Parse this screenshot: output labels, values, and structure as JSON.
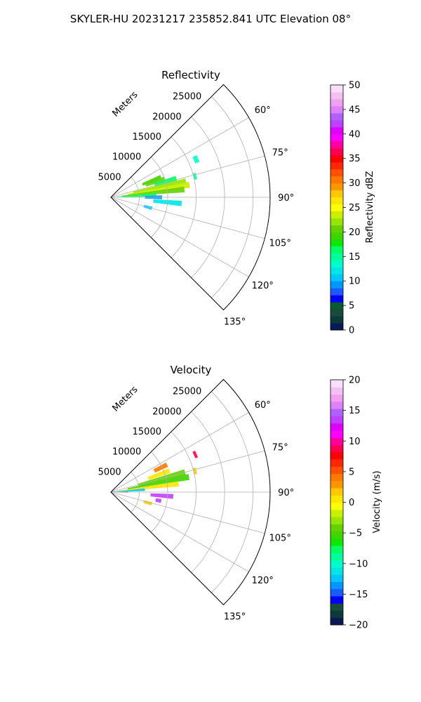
{
  "figure": {
    "suptitle": "SKYLER-HU  20231217  235852.841 UTC Elevation 08°"
  },
  "chart_data": [
    {
      "type": "polar-sector",
      "title": "Reflectivity",
      "radial_label": "Meters",
      "theta_range_deg": [
        45,
        135
      ],
      "r_max": 28000,
      "r_ticks": [
        5000,
        10000,
        15000,
        20000,
        25000
      ],
      "r_tick_labels": [
        "5000",
        "10000",
        "15000",
        "20000",
        "25000"
      ],
      "theta_ticks": [
        60,
        75,
        90,
        105,
        120,
        135
      ],
      "theta_tick_labels": [
        "60°",
        "75°",
        "90°",
        "105°",
        "120°",
        "135°"
      ],
      "grid": true,
      "colorbar": {
        "label": "Reflectivity dBZ",
        "min": 0,
        "max": 50,
        "ticks": [
          0,
          5,
          10,
          15,
          20,
          25,
          30,
          35,
          40,
          45,
          50
        ],
        "tick_labels": [
          "0",
          "5",
          "10",
          "15",
          "20",
          "25",
          "30",
          "35",
          "40",
          "45",
          "50"
        ],
        "bands": [
          "#0a1a55",
          "#0a3a3a",
          "#1a4a3a",
          "#0a5a30",
          "#0000ff",
          "#1a5aff",
          "#0096ff",
          "#00c8ff",
          "#00e6e6",
          "#00ffc8",
          "#00ff96",
          "#00ff64",
          "#10e600",
          "#40d400",
          "#64d200",
          "#96e600",
          "#c8f000",
          "#ffff00",
          "#ffe600",
          "#ffc800",
          "#ff9600",
          "#ff7800",
          "#ff5000",
          "#ff2800",
          "#ff0000",
          "#ff0050",
          "#ff00a0",
          "#ff00ff",
          "#e000ff",
          "#c040ff",
          "#b060ff",
          "#e080ff",
          "#f0a0f0",
          "#f4c0f4",
          "#f8e0f8"
        ]
      },
      "echo_regions": [
        {
          "theta": 68,
          "r_range": [
            6000,
            9500
          ],
          "value": 19
        },
        {
          "theta": 71,
          "r_range": [
            6500,
            10000
          ],
          "value": 21
        },
        {
          "theta": 74,
          "r_range": [
            8000,
            12000
          ],
          "value": 17
        },
        {
          "theta": 78,
          "r_range": [
            4000,
            13500
          ],
          "value": 22
        },
        {
          "theta": 81,
          "r_range": [
            3000,
            14000
          ],
          "value": 24
        },
        {
          "theta": 84,
          "r_range": [
            2000,
            13000
          ],
          "value": 20
        },
        {
          "theta": 87,
          "r_range": [
            1000,
            8000
          ],
          "value": 16
        },
        {
          "theta": 90,
          "r_range": [
            6000,
            9000
          ],
          "value": 9
        },
        {
          "theta": 95,
          "r_range": [
            7500,
            12500
          ],
          "value": 12
        },
        {
          "theta": 105,
          "r_range": [
            6000,
            7500
          ],
          "value": 11
        },
        {
          "theta": 66,
          "r_range": [
            16000,
            16800
          ],
          "value": 14
        },
        {
          "theta": 76,
          "r_range": [
            15000,
            15500
          ],
          "value": 15
        }
      ]
    },
    {
      "type": "polar-sector",
      "title": "Velocity",
      "radial_label": "Meters",
      "theta_range_deg": [
        45,
        135
      ],
      "r_max": 28000,
      "r_ticks": [
        5000,
        10000,
        15000,
        20000,
        25000
      ],
      "r_tick_labels": [
        "5000",
        "10000",
        "15000",
        "20000",
        "25000"
      ],
      "theta_ticks": [
        60,
        75,
        90,
        105,
        120,
        135
      ],
      "theta_tick_labels": [
        "60°",
        "75°",
        "90°",
        "105°",
        "120°",
        "135°"
      ],
      "grid": true,
      "colorbar": {
        "label": "Velocity (m/s)",
        "min": -20,
        "max": 20,
        "ticks": [
          -20,
          -15,
          -10,
          -5,
          0,
          5,
          10,
          15,
          20
        ],
        "tick_labels": [
          "−20",
          "−15",
          "−10",
          "−5",
          "0",
          "5",
          "10",
          "15",
          "20"
        ],
        "bands": [
          "#0a1a55",
          "#0a3a3a",
          "#1a4a3a",
          "#0000ff",
          "#1a5aff",
          "#0096ff",
          "#00c8ff",
          "#00e6e6",
          "#00ffc8",
          "#00ff96",
          "#00ff64",
          "#10e600",
          "#40d400",
          "#64d200",
          "#96e600",
          "#c8f000",
          "#ffff00",
          "#ffe600",
          "#ffc800",
          "#ff9600",
          "#ff7800",
          "#ff5000",
          "#ff2800",
          "#ff0000",
          "#ff0050",
          "#ff00a0",
          "#ff00ff",
          "#e000ff",
          "#c040ff",
          "#b060ff",
          "#e080ff",
          "#f0a0f0",
          "#f4c0f4",
          "#f8e0f8"
        ]
      },
      "echo_regions": [
        {
          "theta": 64,
          "r_range": [
            8500,
            11000
          ],
          "value": 4
        },
        {
          "theta": 70,
          "r_range": [
            7000,
            11000
          ],
          "value": 1
        },
        {
          "theta": 75,
          "r_range": [
            5000,
            13500
          ],
          "value": -4
        },
        {
          "theta": 79,
          "r_range": [
            3000,
            14000
          ],
          "value": -5
        },
        {
          "theta": 83,
          "r_range": [
            1000,
            12000
          ],
          "value": 0
        },
        {
          "theta": 86,
          "r_range": [
            500,
            6000
          ],
          "value": -12
        },
        {
          "theta": 90,
          "r_range": [
            500,
            3000
          ],
          "value": 15
        },
        {
          "theta": 94,
          "r_range": [
            7000,
            11000
          ],
          "value": 14
        },
        {
          "theta": 100,
          "r_range": [
            8000,
            9000
          ],
          "value": 13
        },
        {
          "theta": 106,
          "r_range": [
            6000,
            7500
          ],
          "value": 2
        },
        {
          "theta": 66,
          "r_range": [
            16000,
            16500
          ],
          "value": 9
        },
        {
          "theta": 76,
          "r_range": [
            15000,
            15500
          ],
          "value": 2
        }
      ]
    }
  ]
}
